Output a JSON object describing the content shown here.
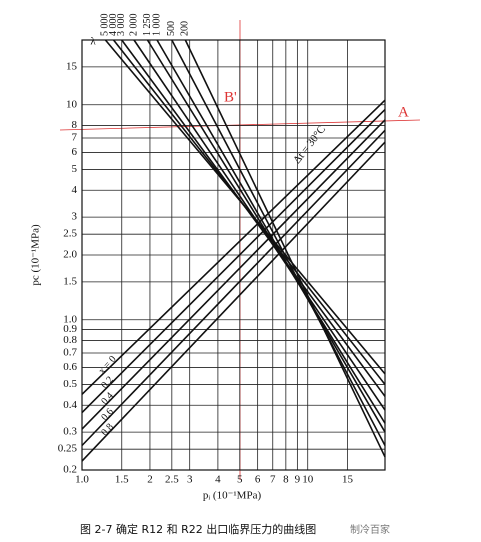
{
  "chart_data": {
    "type": "line",
    "x_label": "pᵢ (10⁻¹MPa)",
    "y_label": "pc (10⁻¹MPa)",
    "top_axis_label": "λ",
    "log_x": true,
    "log_y": true,
    "grid": true,
    "xlim": [
      1,
      22
    ],
    "ylim": [
      0.2,
      20
    ],
    "xticks": [
      {
        "value": 1,
        "label": "1.0"
      },
      1.5,
      2,
      2.5,
      3,
      4,
      5,
      6,
      7,
      8,
      9,
      10,
      15
    ],
    "yticks": [
      0.2,
      0.25,
      0.3,
      0.4,
      0.5,
      0.6,
      0.7,
      0.8,
      0.9,
      {
        "value": 1,
        "label": "1.0"
      },
      1.5,
      {
        "value": 2,
        "label": "2.0"
      },
      2.5,
      3,
      4,
      5,
      6,
      7,
      8,
      10,
      15
    ],
    "series": [
      {
        "name": "5 000",
        "color": "#111",
        "x": [
          1.27,
          22
        ],
        "values": [
          20,
          0.56
        ]
      },
      {
        "name": "4 000",
        "color": "#111",
        "x": [
          1.38,
          22
        ],
        "values": [
          20,
          0.5
        ]
      },
      {
        "name": "3 000",
        "color": "#111",
        "x": [
          1.5,
          22
        ],
        "values": [
          20,
          0.44
        ]
      },
      {
        "name": "2 000",
        "color": "#111",
        "x": [
          1.7,
          22
        ],
        "values": [
          20,
          0.38
        ]
      },
      {
        "name": "1 250",
        "color": "#111",
        "x": [
          1.95,
          22
        ],
        "values": [
          20,
          0.33
        ]
      },
      {
        "name": "1 000",
        "color": "#111",
        "x": [
          2.15,
          22
        ],
        "values": [
          20,
          0.3
        ]
      },
      {
        "name": "500",
        "color": "#111",
        "x": [
          2.5,
          22
        ],
        "values": [
          20,
          0.26
        ]
      },
      {
        "name": "200",
        "color": "#111",
        "x": [
          2.87,
          22
        ],
        "values": [
          20,
          0.23
        ]
      },
      {
        "name": "x = 0",
        "color": "#111",
        "x": [
          1,
          22
        ],
        "values": [
          0.45,
          10.5
        ]
      },
      {
        "name": "0.2",
        "color": "#111",
        "x": [
          1,
          22
        ],
        "values": [
          0.37,
          9.5
        ]
      },
      {
        "name": "0.4",
        "color": "#111",
        "x": [
          1,
          22
        ],
        "values": [
          0.31,
          8.5
        ]
      },
      {
        "name": "0.6",
        "color": "#111",
        "x": [
          1,
          22
        ],
        "values": [
          0.26,
          7.6
        ]
      },
      {
        "name": "0.8",
        "color": "#111",
        "x": [
          1,
          22
        ],
        "values": [
          0.22,
          6.7
        ]
      }
    ],
    "delta_label": "Δt = 30°C",
    "annotations": [
      "A",
      "B'"
    ],
    "caption": "图 2-7   确定 R12 和 R22 出口临界压力的曲线图",
    "watermark": "制冷百家"
  }
}
